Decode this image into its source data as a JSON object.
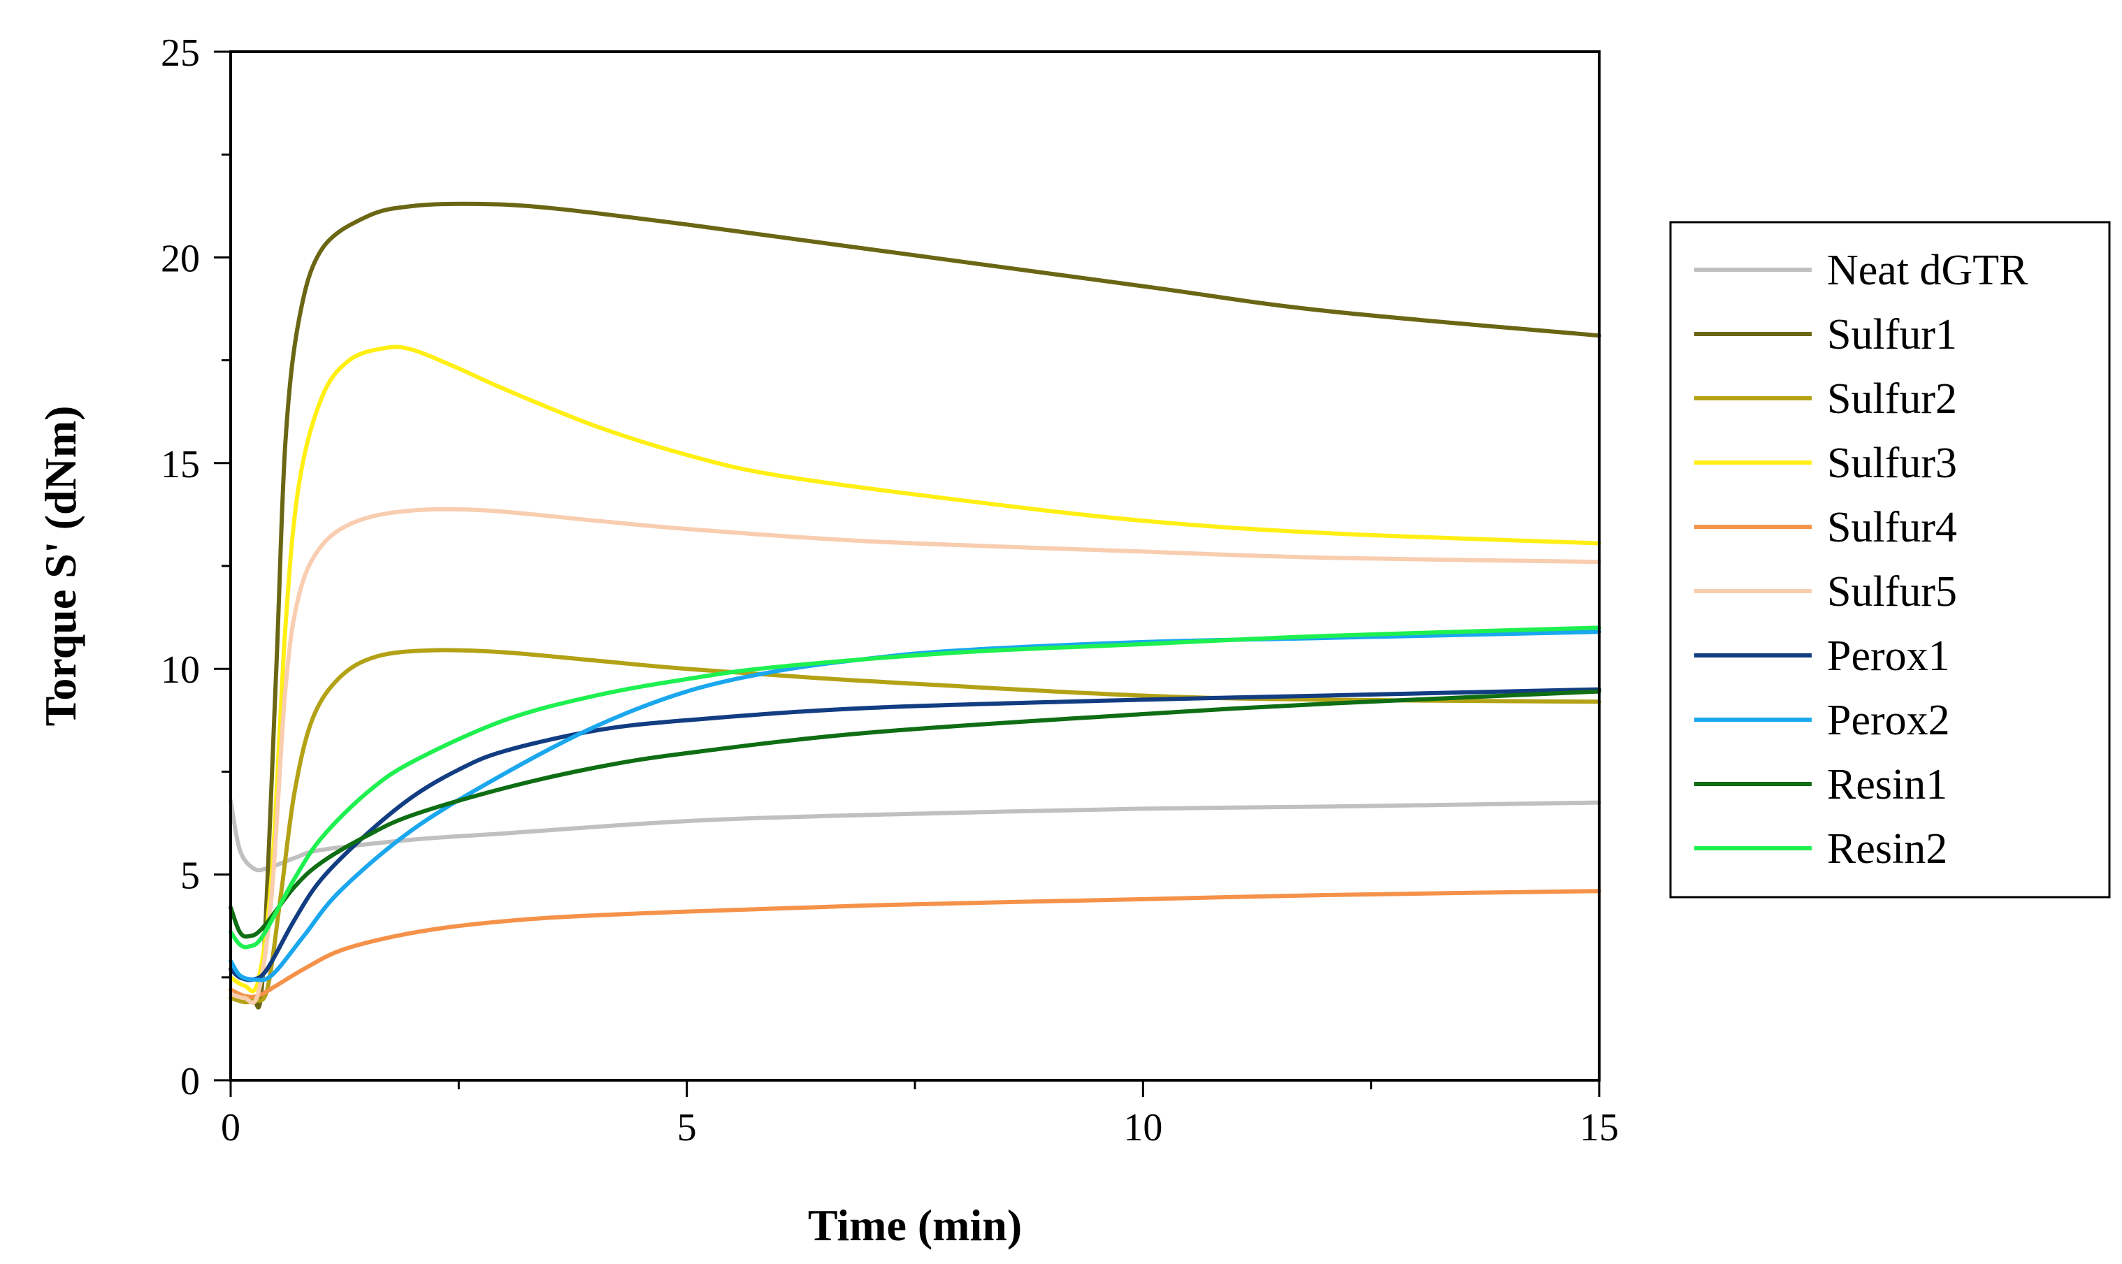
{
  "chart_data": {
    "type": "line",
    "title": "",
    "xlabel": "Time (min)",
    "ylabel": "Torque S' (dNm)",
    "xlim": [
      0,
      15
    ],
    "ylim": [
      0,
      25
    ],
    "xticks": [
      0,
      5,
      10,
      15
    ],
    "yticks": [
      0,
      5,
      10,
      15,
      20,
      25
    ],
    "grid": false,
    "legend_position": "right",
    "series": [
      {
        "name": "Neat dGTR",
        "color": "#c0c0c0",
        "points": [
          [
            0,
            6.8
          ],
          [
            0.1,
            5.6
          ],
          [
            0.25,
            5.15
          ],
          [
            0.4,
            5.15
          ],
          [
            0.7,
            5.4
          ],
          [
            1,
            5.6
          ],
          [
            2,
            5.85
          ],
          [
            3,
            6.0
          ],
          [
            5,
            6.3
          ],
          [
            7,
            6.45
          ],
          [
            10,
            6.6
          ],
          [
            12,
            6.65
          ],
          [
            15,
            6.75
          ]
        ]
      },
      {
        "name": "Sulfur1",
        "color": "#6b6614",
        "points": [
          [
            0,
            2.2
          ],
          [
            0.15,
            2.0
          ],
          [
            0.25,
            2.0
          ],
          [
            0.35,
            2.5
          ],
          [
            0.5,
            10
          ],
          [
            0.6,
            15.5
          ],
          [
            0.75,
            18.5
          ],
          [
            1,
            20.2
          ],
          [
            1.5,
            21.0
          ],
          [
            2,
            21.25
          ],
          [
            2.7,
            21.3
          ],
          [
            3.5,
            21.2
          ],
          [
            5,
            20.8
          ],
          [
            7,
            20.2
          ],
          [
            10,
            19.3
          ],
          [
            12,
            18.7
          ],
          [
            15,
            18.1
          ]
        ]
      },
      {
        "name": "Sulfur2",
        "color": "#b3a216",
        "points": [
          [
            0,
            2.0
          ],
          [
            0.15,
            1.9
          ],
          [
            0.25,
            1.95
          ],
          [
            0.4,
            2.2
          ],
          [
            0.55,
            4.5
          ],
          [
            0.7,
            7.0
          ],
          [
            0.9,
            8.8
          ],
          [
            1.2,
            9.8
          ],
          [
            1.6,
            10.3
          ],
          [
            2.2,
            10.45
          ],
          [
            3,
            10.4
          ],
          [
            4,
            10.2
          ],
          [
            5,
            10.0
          ],
          [
            7,
            9.7
          ],
          [
            10,
            9.35
          ],
          [
            12,
            9.25
          ],
          [
            15,
            9.2
          ]
        ]
      },
      {
        "name": "Sulfur3",
        "color": "#ffef14",
        "points": [
          [
            0,
            2.5
          ],
          [
            0.15,
            2.3
          ],
          [
            0.3,
            2.4
          ],
          [
            0.45,
            5.0
          ],
          [
            0.6,
            11
          ],
          [
            0.75,
            14.5
          ],
          [
            1,
            16.6
          ],
          [
            1.3,
            17.5
          ],
          [
            1.7,
            17.8
          ],
          [
            2,
            17.75
          ],
          [
            2.5,
            17.3
          ],
          [
            3,
            16.8
          ],
          [
            4,
            15.9
          ],
          [
            5,
            15.2
          ],
          [
            6,
            14.7
          ],
          [
            8,
            14.1
          ],
          [
            10,
            13.6
          ],
          [
            12,
            13.3
          ],
          [
            15,
            13.05
          ]
        ]
      },
      {
        "name": "Sulfur4",
        "color": "#f5924a",
        "points": [
          [
            0,
            2.2
          ],
          [
            0.15,
            2.05
          ],
          [
            0.3,
            2.05
          ],
          [
            0.5,
            2.3
          ],
          [
            0.8,
            2.7
          ],
          [
            1.2,
            3.15
          ],
          [
            1.8,
            3.5
          ],
          [
            2.5,
            3.75
          ],
          [
            3.5,
            3.95
          ],
          [
            5,
            4.1
          ],
          [
            7,
            4.25
          ],
          [
            10,
            4.4
          ],
          [
            12,
            4.5
          ],
          [
            15,
            4.6
          ]
        ]
      },
      {
        "name": "Sulfur5",
        "color": "#f8cdb0",
        "points": [
          [
            0,
            2.1
          ],
          [
            0.15,
            2.0
          ],
          [
            0.3,
            2.1
          ],
          [
            0.45,
            4.5
          ],
          [
            0.6,
            9.5
          ],
          [
            0.75,
            11.8
          ],
          [
            1,
            13.0
          ],
          [
            1.4,
            13.6
          ],
          [
            2,
            13.85
          ],
          [
            2.8,
            13.85
          ],
          [
            4,
            13.6
          ],
          [
            5,
            13.4
          ],
          [
            7,
            13.1
          ],
          [
            10,
            12.85
          ],
          [
            12,
            12.7
          ],
          [
            15,
            12.6
          ]
        ]
      },
      {
        "name": "Perox1",
        "color": "#123d82",
        "points": [
          [
            0,
            2.7
          ],
          [
            0.1,
            2.5
          ],
          [
            0.25,
            2.45
          ],
          [
            0.4,
            2.7
          ],
          [
            0.7,
            3.9
          ],
          [
            1,
            4.9
          ],
          [
            1.5,
            6.0
          ],
          [
            2,
            6.9
          ],
          [
            2.5,
            7.55
          ],
          [
            3,
            8.0
          ],
          [
            4,
            8.5
          ],
          [
            5,
            8.75
          ],
          [
            7,
            9.05
          ],
          [
            10,
            9.25
          ],
          [
            12,
            9.35
          ],
          [
            15,
            9.5
          ]
        ]
      },
      {
        "name": "Perox2",
        "color": "#1aa7ee",
        "points": [
          [
            0,
            2.9
          ],
          [
            0.1,
            2.55
          ],
          [
            0.25,
            2.45
          ],
          [
            0.45,
            2.55
          ],
          [
            0.8,
            3.5
          ],
          [
            1.2,
            4.6
          ],
          [
            2,
            6.1
          ],
          [
            3,
            7.45
          ],
          [
            4,
            8.6
          ],
          [
            5,
            9.45
          ],
          [
            6,
            9.95
          ],
          [
            7,
            10.25
          ],
          [
            8,
            10.45
          ],
          [
            10,
            10.65
          ],
          [
            12,
            10.75
          ],
          [
            15,
            10.9
          ]
        ]
      },
      {
        "name": "Resin1",
        "color": "#0f6e14",
        "points": [
          [
            0,
            4.2
          ],
          [
            0.1,
            3.6
          ],
          [
            0.2,
            3.5
          ],
          [
            0.35,
            3.7
          ],
          [
            0.7,
            4.7
          ],
          [
            1,
            5.3
          ],
          [
            1.5,
            5.95
          ],
          [
            2,
            6.45
          ],
          [
            3,
            7.1
          ],
          [
            4,
            7.6
          ],
          [
            5,
            7.95
          ],
          [
            7,
            8.45
          ],
          [
            10,
            8.9
          ],
          [
            12,
            9.15
          ],
          [
            15,
            9.45
          ]
        ]
      },
      {
        "name": "Resin2",
        "color": "#1ef050",
        "points": [
          [
            0,
            3.6
          ],
          [
            0.1,
            3.3
          ],
          [
            0.2,
            3.25
          ],
          [
            0.35,
            3.5
          ],
          [
            0.7,
            4.9
          ],
          [
            1,
            5.9
          ],
          [
            1.5,
            7.0
          ],
          [
            2,
            7.75
          ],
          [
            3,
            8.75
          ],
          [
            4,
            9.35
          ],
          [
            5,
            9.75
          ],
          [
            6,
            10.05
          ],
          [
            8,
            10.4
          ],
          [
            10,
            10.6
          ],
          [
            12,
            10.8
          ],
          [
            15,
            11.0
          ]
        ]
      }
    ]
  }
}
